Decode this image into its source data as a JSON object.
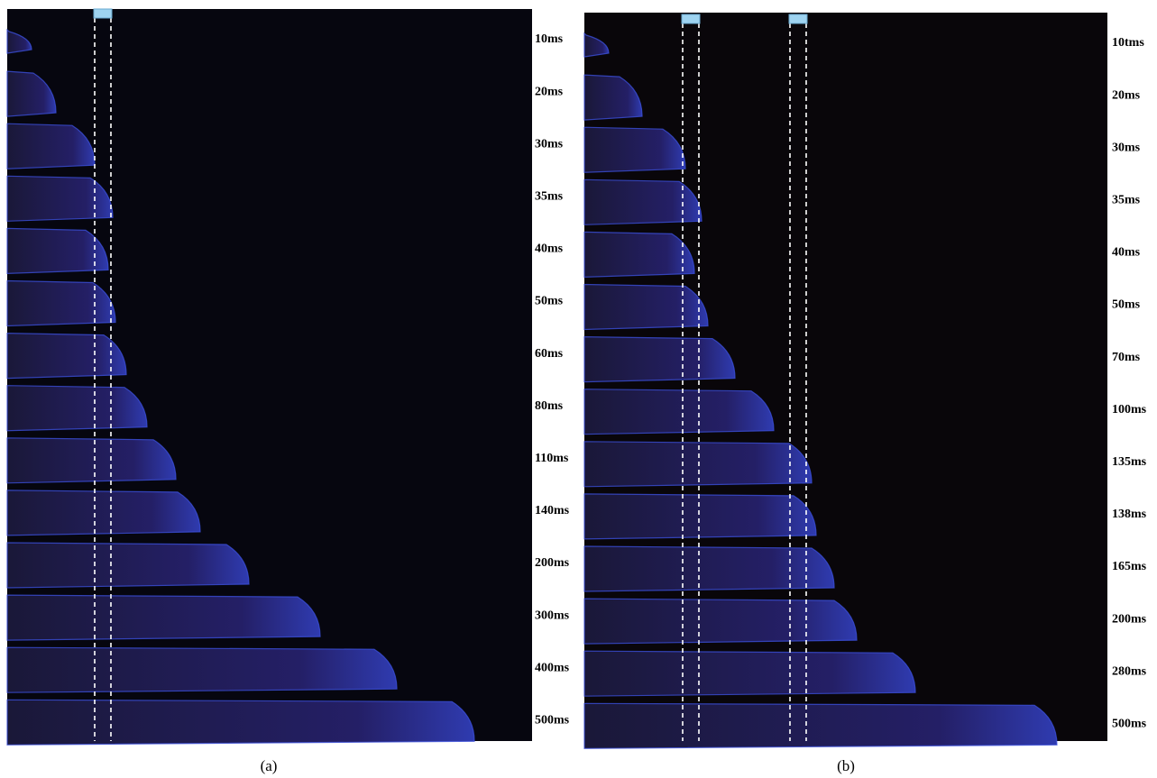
{
  "panels": [
    {
      "caption": "(a)",
      "labels": [
        "10ms",
        "20ms",
        "30ms",
        "35ms",
        "40ms",
        "50ms",
        "60ms",
        "80ms",
        "110ms",
        "140ms",
        "200ms",
        "300ms",
        "400ms",
        "500ms"
      ]
    },
    {
      "caption": "(b)",
      "labels": [
        "10tms",
        "20ms",
        "30ms",
        "35ms",
        "40ms",
        "50ms",
        "70ms",
        "100ms",
        "135ms",
        "138ms",
        "165ms",
        "200ms",
        "280ms",
        "500ms"
      ]
    }
  ]
}
